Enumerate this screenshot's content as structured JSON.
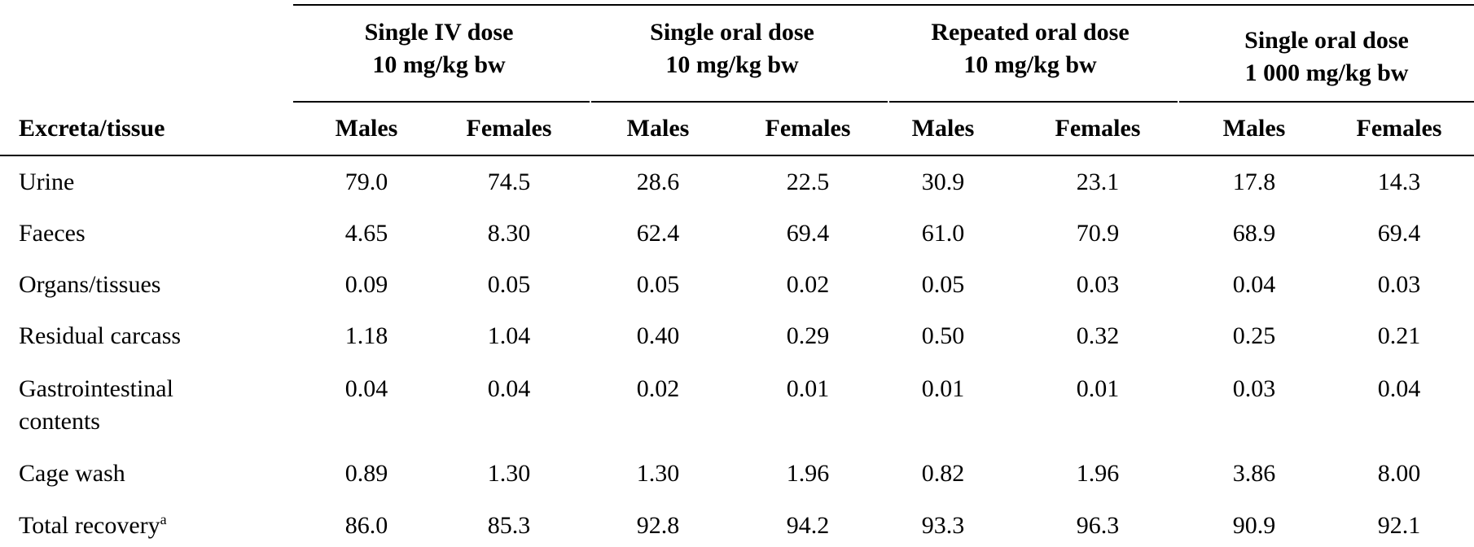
{
  "table": {
    "row_header_label": "Excreta/tissue",
    "groups": [
      {
        "line1": "Single IV dose",
        "line2": "10 mg/kg bw"
      },
      {
        "line1": "Single oral dose",
        "line2": "10 mg/kg bw"
      },
      {
        "line1": "Repeated oral dose",
        "line2": "10 mg/kg bw"
      },
      {
        "line1": "Single oral dose",
        "line2": "1 000 mg/kg bw"
      }
    ],
    "sub_headers": [
      "Males",
      "Females",
      "Males",
      "Females",
      "Males",
      "Females",
      "Males",
      "Females"
    ],
    "rows": [
      {
        "label": "Urine",
        "values": [
          "79.0",
          "74.5",
          "28.6",
          "22.5",
          "30.9",
          "23.1",
          "17.8",
          "14.3"
        ]
      },
      {
        "label": "Faeces",
        "values": [
          "4.65",
          "8.30",
          "62.4",
          "69.4",
          "61.0",
          "70.9",
          "68.9",
          "69.4"
        ]
      },
      {
        "label": "Organs/tissues",
        "values": [
          "0.09",
          "0.05",
          "0.05",
          "0.02",
          "0.05",
          "0.03",
          "0.04",
          "0.03"
        ]
      },
      {
        "label": "Residual carcass",
        "values": [
          "1.18",
          "1.04",
          "0.40",
          "0.29",
          "0.50",
          "0.32",
          "0.25",
          "0.21"
        ]
      },
      {
        "label_line1": "Gastrointestinal",
        "label_line2": "contents",
        "values": [
          "0.04",
          "0.04",
          "0.02",
          "0.01",
          "0.01",
          "0.01",
          "0.03",
          "0.04"
        ]
      },
      {
        "label": "Cage wash",
        "values": [
          "0.89",
          "1.30",
          "1.30",
          "1.96",
          "0.82",
          "1.96",
          "3.86",
          "8.00"
        ]
      },
      {
        "label": "Total recovery",
        "label_sup": "a",
        "values": [
          "86.0",
          "85.3",
          "92.8",
          "94.2",
          "93.3",
          "96.3",
          "90.9",
          "92.1"
        ]
      }
    ]
  }
}
